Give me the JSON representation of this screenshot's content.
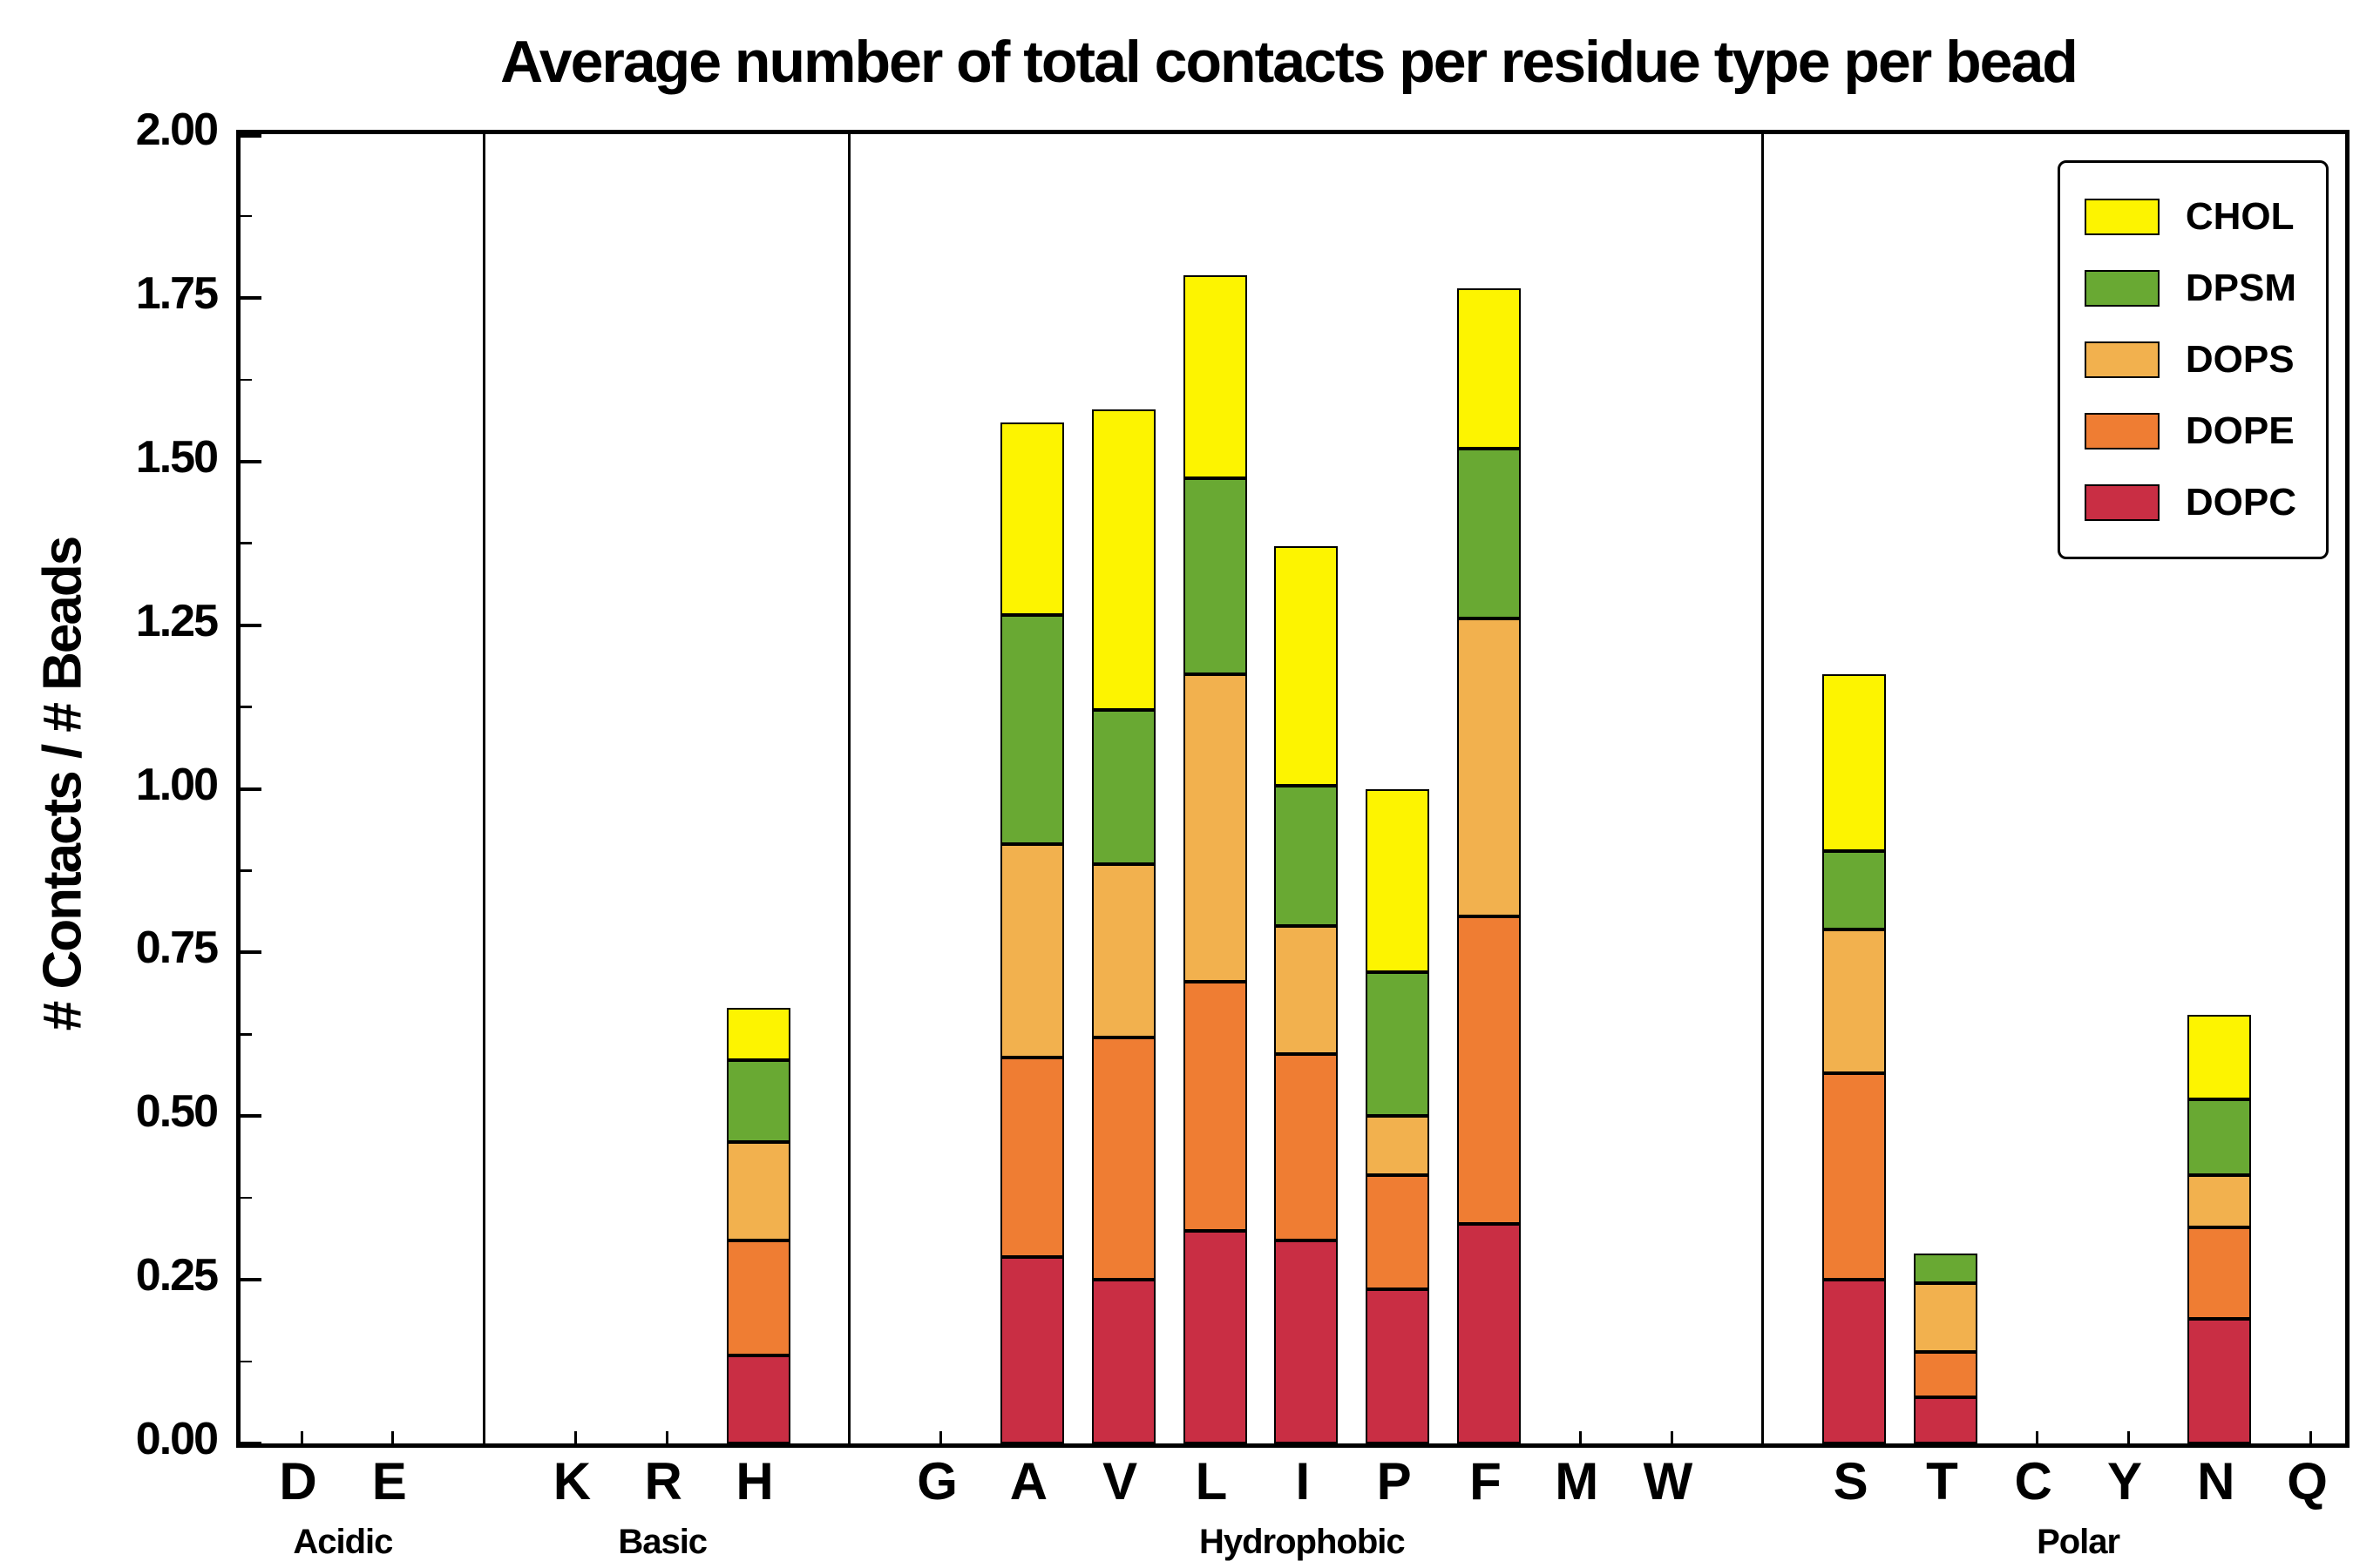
{
  "chart_data": {
    "type": "bar",
    "stacked": true,
    "title": "Average number of total contacts per residue type per bead",
    "ylabel": "# Contacts / # Beads",
    "ylim": [
      0,
      2.0
    ],
    "ytick_step": 0.25,
    "ytick_labels": [
      "0.00",
      "0.25",
      "0.50",
      "0.75",
      "1.00",
      "1.25",
      "1.50",
      "1.75",
      "2.00"
    ],
    "grid": false,
    "legend_position": "upper right",
    "legend_order_top_to_bottom": [
      "CHOL",
      "DPSM",
      "DOPS",
      "DOPE",
      "DOPC"
    ],
    "groups": [
      {
        "label": "Acidic",
        "residues": [
          "D",
          "E"
        ]
      },
      {
        "label": "Basic",
        "residues": [
          "K",
          "R",
          "H"
        ]
      },
      {
        "label": "Hydrophobic",
        "residues": [
          "G",
          "A",
          "V",
          "L",
          "I",
          "P",
          "F",
          "M",
          "W"
        ]
      },
      {
        "label": "Polar",
        "residues": [
          "S",
          "T",
          "C",
          "Y",
          "N",
          "Q"
        ]
      }
    ],
    "categories": [
      "D",
      "E",
      "K",
      "R",
      "H",
      "G",
      "A",
      "V",
      "L",
      "I",
      "P",
      "F",
      "M",
      "W",
      "S",
      "T",
      "C",
      "Y",
      "N",
      "Q"
    ],
    "series": [
      {
        "name": "DOPC",
        "color": "#c92e44",
        "values": [
          0,
          0,
          0,
          0,
          0.135,
          0,
          0.285,
          0.25,
          0.325,
          0.31,
          0.235,
          0.335,
          0,
          0,
          0.25,
          0.07,
          0,
          0,
          0.19,
          0
        ]
      },
      {
        "name": "DOPE",
        "color": "#ef7d33",
        "values": [
          0,
          0,
          0,
          0,
          0.175,
          0,
          0.305,
          0.37,
          0.38,
          0.285,
          0.175,
          0.47,
          0,
          0,
          0.315,
          0.07,
          0,
          0,
          0.14,
          0
        ]
      },
      {
        "name": "DOPS",
        "color": "#f2b14e",
        "values": [
          0,
          0,
          0,
          0,
          0.15,
          0,
          0.325,
          0.265,
          0.47,
          0.195,
          0.09,
          0.455,
          0,
          0,
          0.22,
          0.105,
          0,
          0,
          0.08,
          0
        ]
      },
      {
        "name": "DPSM",
        "color": "#69a933",
        "values": [
          0,
          0,
          0,
          0,
          0.125,
          0,
          0.35,
          0.235,
          0.3,
          0.215,
          0.22,
          0.26,
          0,
          0,
          0.12,
          0.045,
          0,
          0,
          0.115,
          0
        ]
      },
      {
        "name": "CHOL",
        "color": "#fdf400",
        "values": [
          0,
          0,
          0,
          0,
          0.08,
          0,
          0.295,
          0.46,
          0.31,
          0.365,
          0.28,
          0.245,
          0,
          0,
          0.27,
          0,
          0,
          0,
          0.13,
          0
        ]
      }
    ],
    "totals": {
      "H": 0.665,
      "A": 1.56,
      "V": 1.58,
      "L": 1.785,
      "I": 1.37,
      "P": 1.0,
      "F": 1.765,
      "S": 1.175,
      "T": 0.29,
      "N": 0.655
    }
  }
}
